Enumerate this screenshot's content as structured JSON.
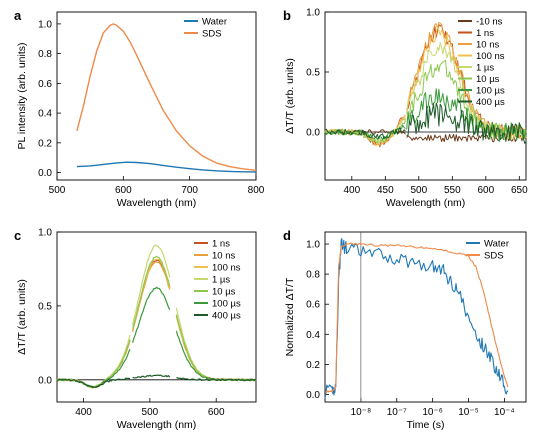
{
  "chart_data": [
    {
      "panel": "a",
      "type": "line",
      "xlabel": "Wavelength (nm)",
      "ylabel": "PL intensity (arb. units)",
      "xlim": [
        500,
        800
      ],
      "ylim": [
        -0.05,
        1.08
      ],
      "xticks": [
        500,
        600,
        700,
        800
      ],
      "yticks": [
        0.0,
        0.2,
        0.4,
        0.6,
        0.8,
        1.0
      ],
      "ytick_labels": [
        "0.0",
        "0.2",
        "0.4",
        "0.6",
        "0.8",
        "1.0"
      ],
      "legend_position": "top-right",
      "series": [
        {
          "name": "Water",
          "color": "#1f77b4",
          "x": [
            530,
            550,
            570,
            590,
            605,
            620,
            640,
            660,
            680,
            700,
            720,
            740,
            760,
            780,
            800
          ],
          "y": [
            0.04,
            0.045,
            0.055,
            0.065,
            0.07,
            0.068,
            0.06,
            0.048,
            0.036,
            0.026,
            0.018,
            0.012,
            0.008,
            0.005,
            0.004
          ]
        },
        {
          "name": "SDS",
          "color": "#ee8a4a",
          "x": [
            530,
            540,
            550,
            560,
            570,
            580,
            585,
            590,
            600,
            610,
            620,
            640,
            660,
            680,
            700,
            720,
            740,
            760,
            780,
            800
          ],
          "y": [
            0.28,
            0.45,
            0.65,
            0.82,
            0.94,
            0.99,
            1.0,
            0.99,
            0.95,
            0.88,
            0.79,
            0.6,
            0.42,
            0.28,
            0.18,
            0.11,
            0.065,
            0.04,
            0.025,
            0.015
          ]
        }
      ]
    },
    {
      "panel": "b",
      "type": "line",
      "xlabel": "Wavelength (nm)",
      "ylabel": "ΔT/T (arb. units)",
      "xlim": [
        360,
        660
      ],
      "ylim": [
        -0.4,
        1.0
      ],
      "xticks": [
        400,
        450,
        500,
        550,
        600,
        650
      ],
      "yticks": [
        0.0,
        0.5,
        1.0
      ],
      "ytick_labels": [
        "0.0",
        "0.5",
        "1.0"
      ],
      "legend_position": "top-right",
      "series": [
        {
          "name": "-10 ns",
          "color": "#6b3a1c",
          "peak": 0.0
        },
        {
          "name": "1 ns",
          "color": "#c8501e",
          "peak": 0.85
        },
        {
          "name": "10 ns",
          "color": "#e8a03c",
          "peak": 0.88
        },
        {
          "name": "100 ns",
          "color": "#f0c050",
          "peak": 0.82
        },
        {
          "name": "1 µs",
          "color": "#c8d870",
          "peak": 0.7
        },
        {
          "name": "10 µs",
          "color": "#8cc850",
          "peak": 0.55
        },
        {
          "name": "100 µs",
          "color": "#3c9a3c",
          "peak": 0.3
        },
        {
          "name": "400 µs",
          "color": "#1e5a28",
          "peak": 0.15
        }
      ]
    },
    {
      "panel": "c",
      "type": "line",
      "xlabel": "Wavelength (nm)",
      "ylabel": "ΔT/T (arb. units)",
      "xlim": [
        360,
        660
      ],
      "ylim": [
        -0.15,
        1.0
      ],
      "xticks": [
        400,
        500,
        600
      ],
      "yticks": [
        0.0,
        0.5,
        1.0
      ],
      "ytick_labels": [
        "0.0",
        "0.5",
        "1.0"
      ],
      "legend_position": "top-right",
      "series": [
        {
          "name": "1 ns",
          "color": "#c8501e",
          "peak": 0.81
        },
        {
          "name": "10 ns",
          "color": "#e8a03c",
          "peak": 0.8
        },
        {
          "name": "100 ns",
          "color": "#f0c050",
          "peak": 0.82
        },
        {
          "name": "1 µs",
          "color": "#c8d870",
          "peak": 0.91
        },
        {
          "name": "10 µs",
          "color": "#8cc850",
          "peak": 0.83
        },
        {
          "name": "100 µs",
          "color": "#3c9a3c",
          "peak": 0.62
        },
        {
          "name": "400 µs",
          "color": "#1e5a28",
          "peak": 0.03
        }
      ]
    },
    {
      "panel": "d",
      "type": "line",
      "xlabel": "Time (s)",
      "ylabel": "Normalized ΔT/T",
      "xscale": "log",
      "xlim": [
        1e-09,
        0.0004
      ],
      "ylim": [
        -0.05,
        1.08
      ],
      "xticks_exp": [
        -8,
        -7,
        -6,
        -5,
        -4
      ],
      "xtick_labels": [
        "10⁻⁸",
        "10⁻⁷",
        "10⁻⁶",
        "10⁻⁵",
        "10⁻⁴"
      ],
      "yticks": [
        0.0,
        0.2,
        0.4,
        0.6,
        0.8,
        1.0
      ],
      "ytick_labels": [
        "0.0",
        "0.2",
        "0.4",
        "0.6",
        "0.8",
        "1.0"
      ],
      "legend_position": "top-right",
      "series": [
        {
          "name": "Water",
          "color": "#1f77b4",
          "log10t": [
            -9.0,
            -8.8,
            -8.7,
            -8.62,
            -8.55,
            -8.4,
            -8.0,
            -7.5,
            -7.0,
            -6.5,
            -6.0,
            -5.7,
            -5.5,
            -5.3,
            -5.0,
            -4.7,
            -4.5,
            -4.3,
            -4.1,
            -3.9
          ],
          "y": [
            0.02,
            0.02,
            0.05,
            0.75,
            1.0,
            0.97,
            0.95,
            0.93,
            0.9,
            0.88,
            0.85,
            0.82,
            0.75,
            0.7,
            0.5,
            0.35,
            0.3,
            0.2,
            0.12,
            0.02
          ]
        },
        {
          "name": "SDS",
          "color": "#ee8a4a",
          "log10t": [
            -9.0,
            -8.8,
            -8.7,
            -8.62,
            -8.55,
            -8.4,
            -8.0,
            -7.5,
            -7.0,
            -6.5,
            -6.0,
            -5.5,
            -5.0,
            -4.8,
            -4.6,
            -4.4,
            -4.2,
            -4.0,
            -3.9
          ],
          "y": [
            0.02,
            0.02,
            0.05,
            0.85,
            0.98,
            1.0,
            1.0,
            0.99,
            0.99,
            0.98,
            0.97,
            0.95,
            0.92,
            0.85,
            0.7,
            0.5,
            0.3,
            0.12,
            0.05
          ]
        }
      ]
    }
  ]
}
